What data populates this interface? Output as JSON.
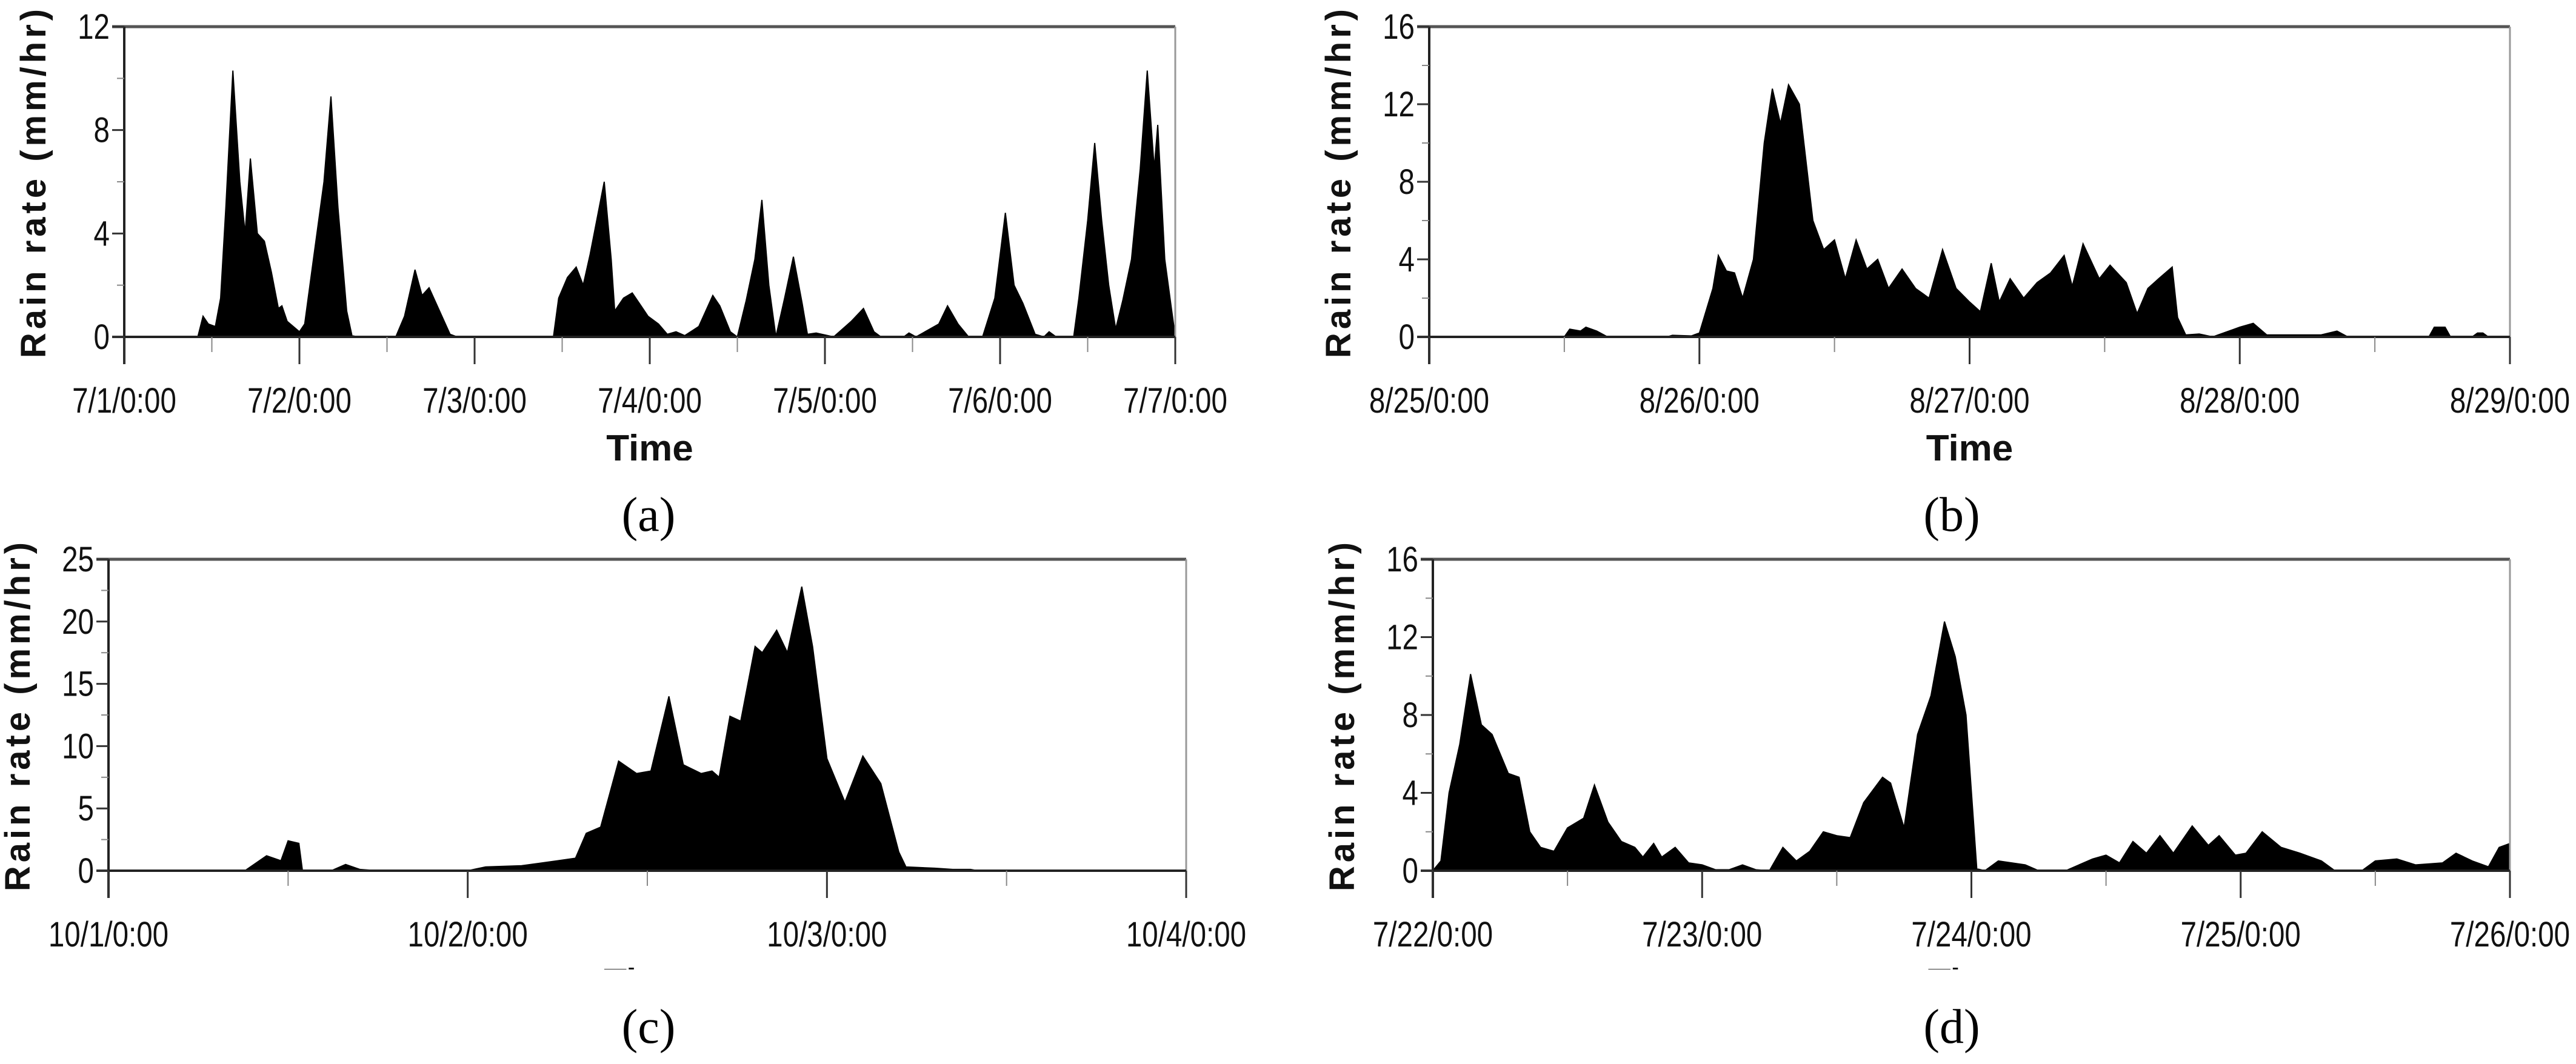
{
  "figure": {
    "captions": [
      "(a)",
      "(b)",
      "(c)",
      "(d)"
    ]
  },
  "chart_data": [
    {
      "type": "area",
      "panel": "(a)",
      "title": "",
      "xlabel": "Time",
      "ylabel": "Rain rate (mm/hr)",
      "ylim": [
        0,
        12
      ],
      "yticks": [
        0,
        4,
        8,
        12
      ],
      "yminor": [
        2,
        6,
        10
      ],
      "xlim_days": [
        0,
        6
      ],
      "xticks": [
        "7/1/0:00",
        "7/2/0:00",
        "7/3/0:00",
        "7/4/0:00",
        "7/5/0:00",
        "7/6/0:00",
        "7/7/0:00"
      ],
      "grid": false,
      "fill_color": "#000000",
      "x": [
        0,
        0.42,
        0.45,
        0.48,
        0.52,
        0.55,
        0.58,
        0.62,
        0.66,
        0.69,
        0.72,
        0.76,
        0.8,
        0.84,
        0.88,
        0.9,
        0.93,
        1.0,
        1.03,
        1.08,
        1.14,
        1.18,
        1.22,
        1.27,
        1.3,
        1.33,
        1.55,
        1.6,
        1.66,
        1.7,
        1.74,
        1.8,
        1.86,
        1.9,
        2.45,
        2.48,
        2.53,
        2.58,
        2.62,
        2.66,
        2.7,
        2.74,
        2.78,
        2.8,
        2.85,
        2.9,
        2.95,
        2.99,
        3.05,
        3.1,
        3.15,
        3.2,
        3.28,
        3.36,
        3.4,
        3.46,
        3.5,
        3.55,
        3.6,
        3.64,
        3.68,
        3.72,
        3.77,
        3.82,
        3.87,
        3.9,
        3.95,
        4.05,
        4.15,
        4.22,
        4.28,
        4.32,
        4.45,
        4.48,
        4.52,
        4.65,
        4.7,
        4.76,
        4.82,
        4.9,
        4.97,
        5.03,
        5.08,
        5.13,
        5.2,
        5.25,
        5.28,
        5.32,
        5.42,
        5.45,
        5.5,
        5.54,
        5.58,
        5.62,
        5.66,
        5.7,
        5.75,
        5.8,
        5.84,
        5.88,
        5.9,
        5.94,
        5.98,
        6.0
      ],
      "values": [
        0,
        0,
        0.8,
        0.5,
        0.4,
        1.5,
        5,
        10.3,
        6,
        4,
        6.9,
        4,
        3.7,
        2.5,
        1.1,
        1.2,
        0.6,
        0.2,
        0.5,
        3,
        6,
        9.3,
        5,
        1,
        0.05,
        0,
        0,
        0.8,
        2.6,
        1.6,
        1.9,
        1,
        0.1,
        0,
        0,
        1.5,
        2.3,
        2.7,
        2,
        3.2,
        4.6,
        6,
        3,
        1,
        1.5,
        1.7,
        1.2,
        0.8,
        0.5,
        0.1,
        0.2,
        0.05,
        0.4,
        1.6,
        1.2,
        0.2,
        0,
        1.4,
        3,
        5.3,
        2,
        0,
        1.5,
        3.1,
        1.3,
        0.1,
        0.15,
        0,
        0.6,
        1.1,
        0.2,
        0,
        0,
        0.15,
        0,
        0.5,
        1.2,
        0.5,
        0,
        0,
        1.5,
        4.8,
        2,
        1.3,
        0.1,
        0,
        0.2,
        0,
        0,
        1.5,
        4.5,
        7.5,
        4.5,
        2,
        0.3,
        1.4,
        3,
        6.5,
        10.3,
        6.5,
        8.2,
        3,
        1,
        0
      ]
    },
    {
      "type": "area",
      "panel": "(b)",
      "title": "",
      "xlabel": "Time",
      "ylabel": "Rain rate (mm/hr)",
      "ylim": [
        0,
        16
      ],
      "yticks": [
        0,
        4,
        8,
        12,
        16
      ],
      "yminor": [
        2,
        6,
        10,
        14
      ],
      "xlim_days": [
        0,
        4
      ],
      "xticks": [
        "8/25/0:00",
        "8/26/0:00",
        "8/27/0:00",
        "8/28/0:00",
        "8/29/0:00"
      ],
      "grid": false,
      "fill_color": "#000000",
      "x": [
        0,
        0.5,
        0.52,
        0.56,
        0.58,
        0.62,
        0.66,
        0.88,
        0.9,
        0.97,
        1.0,
        1.05,
        1.07,
        1.1,
        1.13,
        1.16,
        1.2,
        1.24,
        1.27,
        1.3,
        1.33,
        1.37,
        1.42,
        1.46,
        1.5,
        1.54,
        1.58,
        1.62,
        1.66,
        1.7,
        1.75,
        1.8,
        1.85,
        1.9,
        1.95,
        2.0,
        2.04,
        2.08,
        2.11,
        2.15,
        2.2,
        2.25,
        2.3,
        2.35,
        2.38,
        2.42,
        2.48,
        2.52,
        2.58,
        2.62,
        2.66,
        2.7,
        2.75,
        2.77,
        2.8,
        2.85,
        2.9,
        3.0,
        3.05,
        3.1,
        3.2,
        3.3,
        3.36,
        3.4,
        3.7,
        3.72,
        3.76,
        3.78,
        3.86,
        3.88,
        3.9,
        3.92,
        4.0
      ],
      "values": [
        0,
        0,
        0.4,
        0.3,
        0.5,
        0.3,
        0,
        0,
        0.08,
        0.05,
        0.2,
        2.5,
        4.2,
        3.4,
        3.3,
        2,
        4,
        10,
        12.8,
        11,
        13,
        12,
        6,
        4.5,
        5,
        3,
        5,
        3.5,
        4,
        2.5,
        3.5,
        2.5,
        2,
        4.5,
        2.5,
        1.8,
        1.3,
        3.8,
        1.8,
        3,
        2,
        2.8,
        3.3,
        4.2,
        2.6,
        4.8,
        3,
        3.7,
        2.8,
        1.2,
        2.5,
        3,
        3.6,
        1,
        0.1,
        0.15,
        0,
        0.5,
        0.7,
        0.1,
        0.1,
        0.1,
        0.3,
        0,
        0,
        0.5,
        0.5,
        0,
        0,
        0.2,
        0.2,
        0,
        0
      ]
    },
    {
      "type": "area",
      "panel": "(c)",
      "title": "",
      "xlabel": "Time",
      "ylabel": "Rain rate (mm/hr)",
      "ylim": [
        0,
        25
      ],
      "yticks": [
        0,
        5,
        10,
        15,
        20,
        25
      ],
      "yminor": [
        2.5,
        7.5,
        12.5,
        17.5,
        22.5
      ],
      "xlim_days": [
        0,
        3
      ],
      "xticks": [
        "10/1/0:00",
        "10/2/0:00",
        "10/3/0:00",
        "10/4/0:00"
      ],
      "grid": false,
      "fill_color": "#000000",
      "x": [
        0,
        0.38,
        0.44,
        0.48,
        0.5,
        0.53,
        0.54,
        0.62,
        0.66,
        0.7,
        0.75,
        1.0,
        1.05,
        1.15,
        1.25,
        1.3,
        1.33,
        1.37,
        1.42,
        1.47,
        1.51,
        1.56,
        1.6,
        1.65,
        1.68,
        1.7,
        1.73,
        1.76,
        1.8,
        1.82,
        1.86,
        1.89,
        1.93,
        1.96,
        2.0,
        2.05,
        2.1,
        2.15,
        2.2,
        2.22,
        2.3,
        2.35,
        2.4,
        2.42,
        3.0
      ],
      "values": [
        0,
        0,
        1.2,
        0.8,
        2.4,
        2.2,
        0,
        0,
        0.5,
        0.1,
        0,
        0,
        0.3,
        0.4,
        0.8,
        1,
        3,
        3.5,
        8.8,
        7.8,
        8,
        14,
        8.5,
        7.8,
        8,
        7.5,
        12.4,
        12,
        18,
        17.5,
        19.3,
        17.5,
        22.8,
        18,
        9,
        5.5,
        9.2,
        7,
        1.5,
        0.3,
        0.2,
        0.1,
        0.1,
        0,
        0
      ]
    },
    {
      "type": "area",
      "panel": "(d)",
      "title": "",
      "xlabel": "Time",
      "ylabel": "Rain rate (mm/hr)",
      "ylim": [
        0,
        16
      ],
      "yticks": [
        0,
        4,
        8,
        12,
        16
      ],
      "yminor": [
        2,
        6,
        10,
        14
      ],
      "xlim_days": [
        0,
        4
      ],
      "xticks": [
        "7/22/0:00",
        "7/23/0:00",
        "7/24/0:00",
        "7/25/0:00",
        "7/26/0:00"
      ],
      "grid": false,
      "fill_color": "#000000",
      "x": [
        0,
        0.03,
        0.06,
        0.1,
        0.14,
        0.18,
        0.22,
        0.28,
        0.32,
        0.36,
        0.4,
        0.45,
        0.5,
        0.56,
        0.6,
        0.65,
        0.7,
        0.75,
        0.78,
        0.82,
        0.85,
        0.9,
        0.95,
        1.0,
        1.05,
        1.1,
        1.15,
        1.2,
        1.25,
        1.3,
        1.35,
        1.4,
        1.45,
        1.5,
        1.55,
        1.6,
        1.67,
        1.7,
        1.75,
        1.8,
        1.85,
        1.9,
        1.94,
        1.98,
        2.02,
        2.05,
        2.1,
        2.15,
        2.2,
        2.25,
        2.35,
        2.45,
        2.5,
        2.55,
        2.6,
        2.65,
        2.7,
        2.75,
        2.82,
        2.88,
        2.92,
        2.98,
        3.02,
        3.08,
        3.15,
        3.22,
        3.3,
        3.35,
        3.45,
        3.5,
        3.58,
        3.65,
        3.75,
        3.8,
        3.86,
        3.92,
        3.96,
        4.0
      ],
      "values": [
        0,
        0.5,
        4,
        6.5,
        10.1,
        7.5,
        7,
        5,
        4.8,
        2,
        1.2,
        1,
        2.2,
        2.7,
        4.4,
        2.5,
        1.5,
        1.2,
        0.7,
        1.4,
        0.7,
        1.2,
        0.4,
        0.3,
        0.05,
        0.05,
        0.3,
        0.05,
        0,
        1.2,
        0.5,
        1,
        2,
        1.8,
        1.7,
        3.5,
        4.8,
        4.5,
        2.2,
        7,
        9,
        12.8,
        11,
        8,
        0.1,
        0,
        0.5,
        0.4,
        0.3,
        0,
        0,
        0.6,
        0.8,
        0.4,
        1.5,
        0.9,
        1.8,
        0.9,
        2.3,
        1.3,
        1.8,
        0.8,
        0.9,
        2,
        1.2,
        0.9,
        0.5,
        0,
        0,
        0.5,
        0.6,
        0.3,
        0.4,
        0.9,
        0.5,
        0.2,
        1.2,
        1.4
      ]
    }
  ]
}
